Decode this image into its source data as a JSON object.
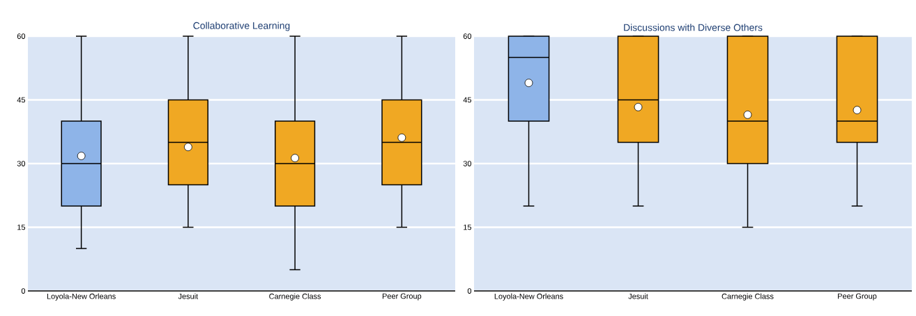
{
  "chart_data": [
    {
      "type": "box",
      "title": "Collaborative Learning",
      "categories": [
        "Loyola-New Orleans",
        "Jesuit",
        "Carnegie Class",
        "Peer Group"
      ],
      "boxes": [
        {
          "low": 10,
          "q1": 20,
          "median": 30,
          "q3": 40,
          "high": 60,
          "mean": 31.8
        },
        {
          "low": 15,
          "q1": 25,
          "median": 35,
          "q3": 45,
          "high": 60,
          "mean": 33.9
        },
        {
          "low": 5,
          "q1": 20,
          "median": 30,
          "q3": 40,
          "high": 60,
          "mean": 31.3
        },
        {
          "low": 15,
          "q1": 25,
          "median": 35,
          "q3": 45,
          "high": 60,
          "mean": 36.1
        }
      ],
      "colors": [
        "#8eb4e8",
        "#f0a823",
        "#f0a823",
        "#f0a823"
      ],
      "ylim": [
        0,
        60
      ],
      "yticks": [
        0,
        15,
        30,
        45,
        60
      ],
      "grid": "y"
    },
    {
      "type": "box",
      "title": "Discussions with Diverse Others",
      "categories": [
        "Loyola-New Orleans",
        "Jesuit",
        "Carnegie Class",
        "Peer Group"
      ],
      "boxes": [
        {
          "low": 20,
          "q1": 40,
          "median": 55,
          "q3": 60,
          "high": 60,
          "mean": 49
        },
        {
          "low": 20,
          "q1": 35,
          "median": 45,
          "q3": 60,
          "high": 60,
          "mean": 43.3
        },
        {
          "low": 15,
          "q1": 30,
          "median": 40,
          "q3": 60,
          "high": 60,
          "mean": 41.5
        },
        {
          "low": 20,
          "q1": 35,
          "median": 40,
          "q3": 60,
          "high": 60,
          "mean": 42.6
        }
      ],
      "colors": [
        "#8eb4e8",
        "#f0a823",
        "#f0a823",
        "#f0a823"
      ],
      "ylim": [
        0,
        60
      ],
      "yticks": [
        0,
        15,
        30,
        45,
        60
      ],
      "grid": "y"
    }
  ]
}
